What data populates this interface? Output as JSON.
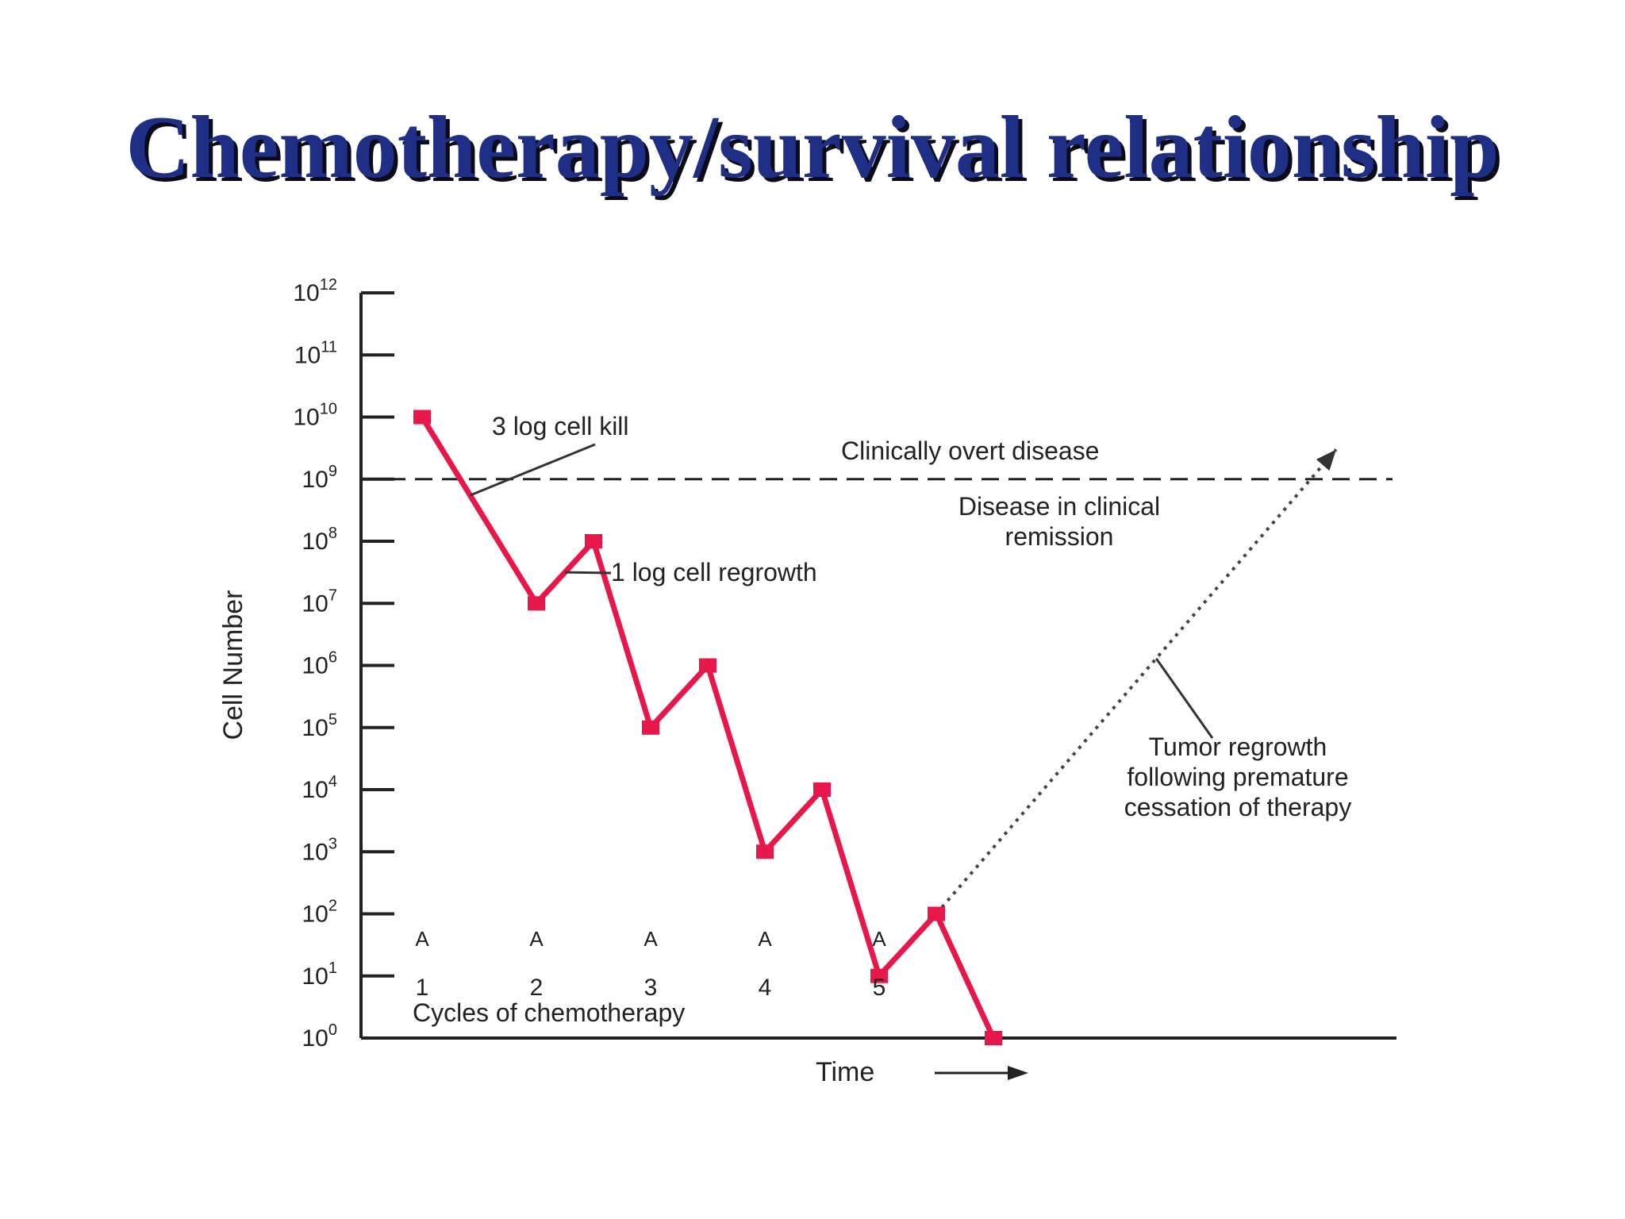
{
  "slide": {
    "title": "Chemotherapy/survival relationship"
  },
  "chart_data": {
    "type": "line",
    "y_scale": "log10",
    "ylabel": "Cell Number",
    "xlabel": "Time",
    "ylim": [
      1,
      1000000000000
    ],
    "y_ticks": [
      {
        "value": 1000000000000,
        "base": "10",
        "exp": "12"
      },
      {
        "value": 100000000000,
        "base": "10",
        "exp": "11"
      },
      {
        "value": 10000000000,
        "base": "10",
        "exp": "10"
      },
      {
        "value": 1000000000,
        "base": "10",
        "exp": "9"
      },
      {
        "value": 100000000,
        "base": "10",
        "exp": "8"
      },
      {
        "value": 10000000,
        "base": "10",
        "exp": "7"
      },
      {
        "value": 1000000,
        "base": "10",
        "exp": "6"
      },
      {
        "value": 100000,
        "base": "10",
        "exp": "5"
      },
      {
        "value": 10000,
        "base": "10",
        "exp": "4"
      },
      {
        "value": 1000,
        "base": "10",
        "exp": "3"
      },
      {
        "value": 100,
        "base": "10",
        "exp": "2"
      },
      {
        "value": 10,
        "base": "10",
        "exp": "1"
      },
      {
        "value": 1,
        "base": "10",
        "exp": "0"
      }
    ],
    "threshold": {
      "value": 1000000000,
      "label_above": "Clinically overt disease",
      "label_below": [
        "Disease in clinical",
        "remission"
      ]
    },
    "cycles": {
      "title": "Cycles of chemotherapy",
      "labels": [
        "1",
        "2",
        "3",
        "4",
        "5"
      ],
      "marker": "A"
    },
    "series": [
      {
        "color": "#e8174a",
        "points": [
          {
            "t": 0.0,
            "y": 10000000000
          },
          {
            "t": 1.0,
            "y": 10000000
          },
          {
            "t": 1.5,
            "y": 100000000
          },
          {
            "t": 2.0,
            "y": 100000
          },
          {
            "t": 2.5,
            "y": 1000000
          },
          {
            "t": 3.0,
            "y": 1000
          },
          {
            "t": 3.5,
            "y": 10000
          },
          {
            "t": 4.0,
            "y": 10
          },
          {
            "t": 4.5,
            "y": 100
          },
          {
            "t": 5.0,
            "y": 1
          }
        ]
      }
    ],
    "regrowth": {
      "style": "dotted",
      "from": {
        "t": 4.5,
        "y": 100
      },
      "to": {
        "t": 8.0,
        "y": 3000000000
      },
      "label": [
        "Tumor regrowth",
        "following premature",
        "cessation of therapy"
      ]
    },
    "annotations": [
      {
        "text": "3 log cell kill"
      },
      {
        "text": "1 log cell regrowth"
      }
    ],
    "colors": {
      "line": "#e8174a",
      "axis": "#222222",
      "title": "#1f2f86"
    }
  }
}
